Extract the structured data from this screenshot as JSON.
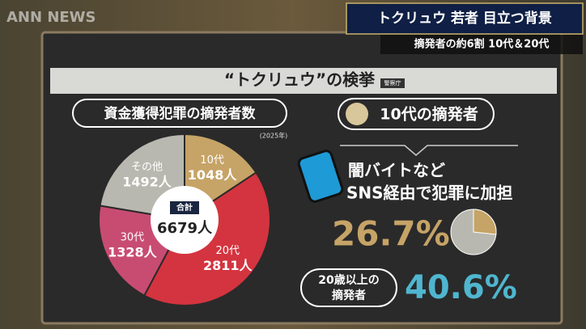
{
  "header": {
    "logo": "ANN NEWS",
    "headline": "トクリュウ 若者 目立つ背景",
    "subheadline": "摘発者の約6割 10代＆20代"
  },
  "board": {
    "title": "“トクリュウ”の検挙",
    "source": "警察庁"
  },
  "left": {
    "heading": "資金獲得犯罪の摘発者数",
    "year": "(2025年)",
    "total_title": "合計",
    "total_label": "6679人"
  },
  "right": {
    "heading": "10代の摘発者",
    "line1": "闇バイトなど",
    "line2": "SNS経由で犯罪に加担",
    "adult_label_1": "20歳以上の",
    "adult_label_2": "摘発者",
    "adult_value": "40.6%"
  },
  "chart_data": [
    {
      "type": "pie",
      "categories": [
        "10代",
        "20代",
        "30代",
        "その他"
      ],
      "values": [
        1048,
        2811,
        1328,
        1492
      ],
      "value_labels": [
        "1048人",
        "2811人",
        "1328人",
        "1492人"
      ],
      "colors": [
        "#c6a366",
        "#d4343f",
        "#c84c72",
        "#b9b8b0"
      ]
    },
    {
      "type": "pie",
      "values": [
        26.7
      ],
      "value_labels": [
        "26.7%"
      ],
      "colors": [
        "#c6a366"
      ],
      "rest_color": "#b9b8b0"
    }
  ]
}
